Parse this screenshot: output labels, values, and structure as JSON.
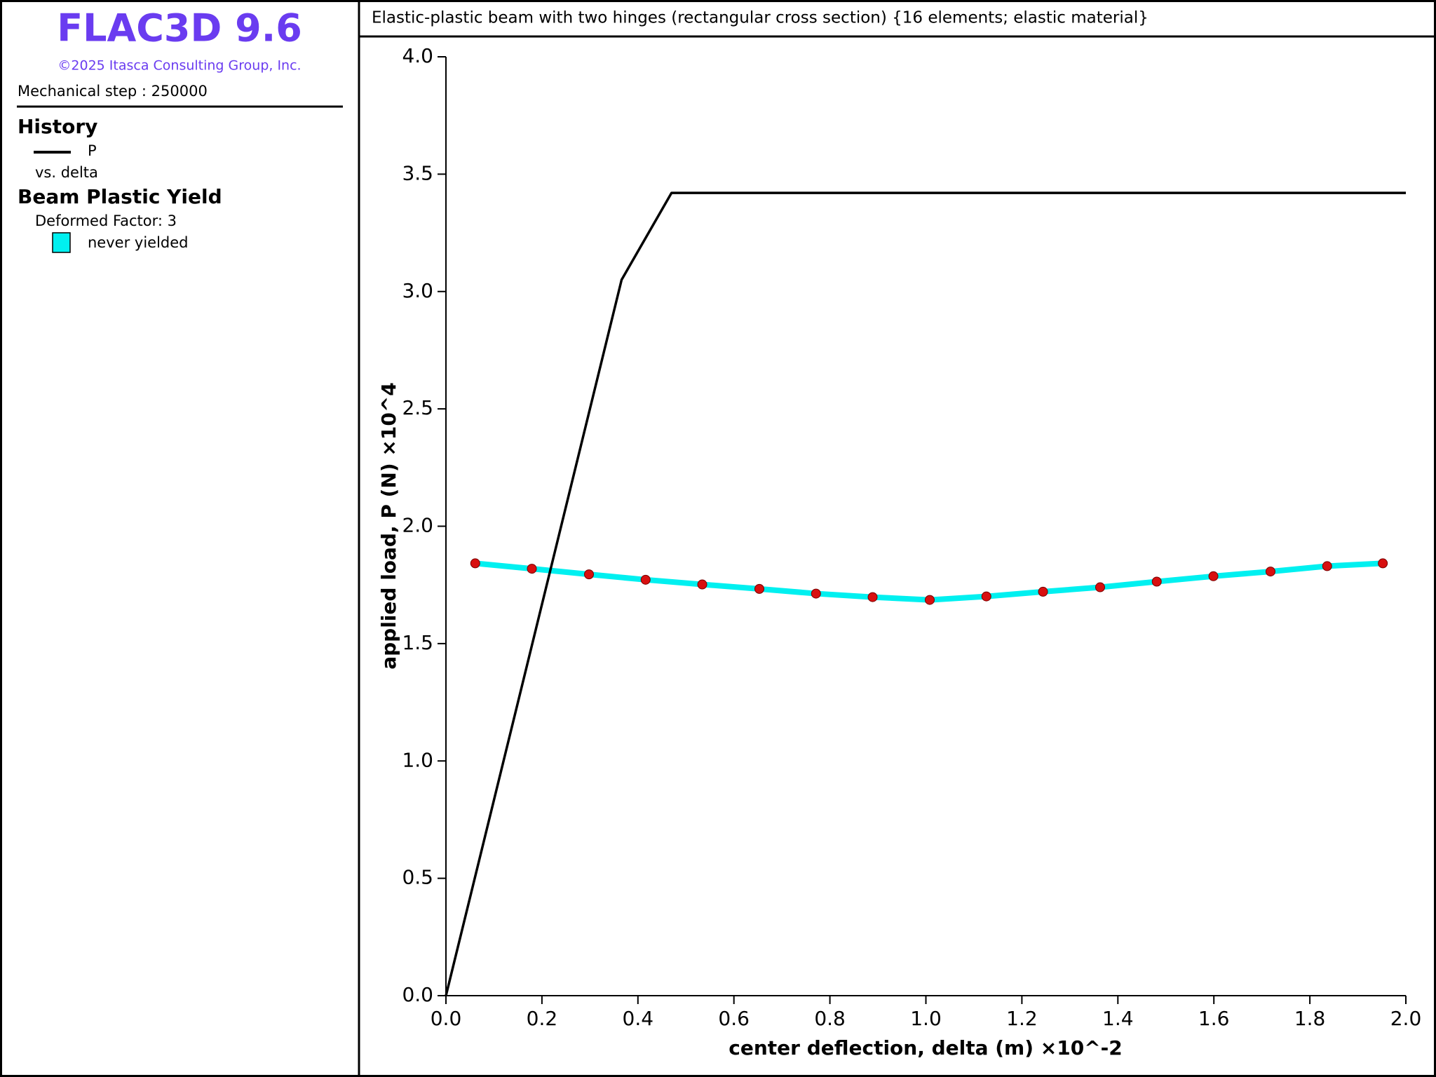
{
  "header": {
    "product": "FLAC3D 9.6",
    "copyright": "©2025 Itasca Consulting Group, Inc.",
    "step": "Mechanical step : 250000"
  },
  "legend": {
    "history_title": "History",
    "history_x": "vs. delta",
    "plot_item_title": "Beam Plastic Yield",
    "deformed_factor": "Deformed Factor: 3"
  },
  "chart_data": {
    "type": "line",
    "title": "Elastic-plastic beam with two hinges (rectangular cross section) {16 elements; elastic material}",
    "x_label": "center deflection, delta (m) ×10^-2",
    "y_label": "applied load, P (N) ×10^4",
    "series": [
      {
        "name": "P",
        "color": "#000000",
        "x": [
          0,
          0.366,
          0.47,
          2.0
        ],
        "values": [
          0,
          3.05,
          3.42,
          3.42
        ]
      },
      {
        "name": "never yielded",
        "color": "#00f0f0",
        "marker_color": "#d81010",
        "x": [
          0.061,
          0.179,
          0.298,
          0.416,
          0.534,
          0.653,
          0.771,
          0.889,
          1.008,
          1.126,
          1.244,
          1.363,
          1.481,
          1.599,
          1.718,
          1.836,
          1.952
        ],
        "values": [
          1.842,
          1.819,
          1.795,
          1.772,
          1.752,
          1.733,
          1.713,
          1.698,
          1.686,
          1.701,
          1.721,
          1.74,
          1.764,
          1.787,
          1.807,
          1.83,
          1.842
        ]
      }
    ],
    "xlim": [
      0,
      2.0
    ],
    "xticks": [
      {
        "value": 0,
        "label": "0.0"
      },
      0.2,
      0.4,
      0.6,
      0.8,
      {
        "value": 1,
        "label": "1.0"
      },
      1.2,
      1.4,
      1.6,
      1.8,
      {
        "value": 2,
        "label": "2.0"
      }
    ],
    "ylim": [
      0,
      4.0
    ],
    "yticks": [
      {
        "value": 0,
        "label": "0.0"
      },
      0.5,
      {
        "value": 1,
        "label": "1.0"
      },
      1.5,
      {
        "value": 2,
        "label": "2.0"
      },
      2.5,
      {
        "value": 3,
        "label": "3.0"
      },
      3.5,
      {
        "value": 4,
        "label": "4.0"
      }
    ]
  }
}
